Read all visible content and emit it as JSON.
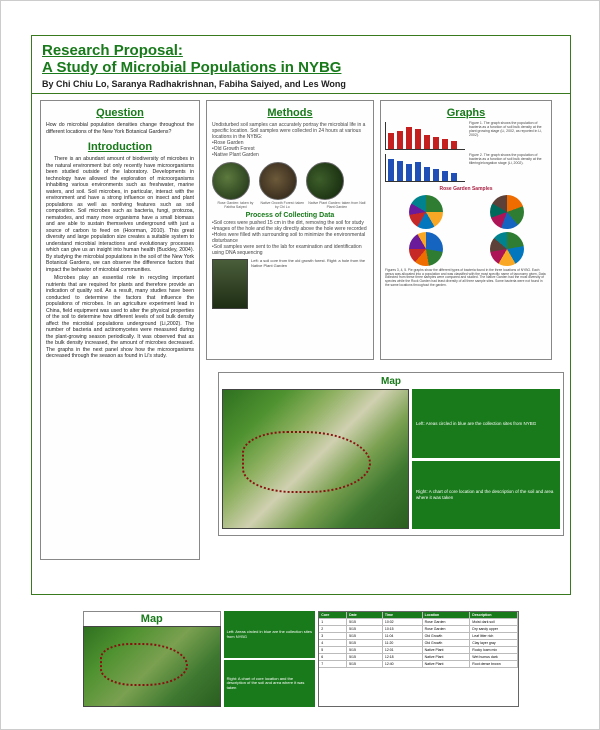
{
  "title": {
    "line1": "Research Proposal:",
    "line2": "A Study of Microbial Populations in NYBG",
    "authors": "By Chi Chiu Lo, Saranya Radhakrishnan, Fabiha Saiyed, and Les Wong"
  },
  "question": {
    "heading": "Question",
    "text": "How do microbial population densities change throughout the different locations of the New York Botanical Gardens?"
  },
  "introduction": {
    "heading": "Introduction",
    "p1": "There is an abundant amount of biodiversity of microbes in the natural environment but only recently have microorganisms been studied outside of the laboratory. Developments in technology have allowed the exploration of microorganisms inhabiting various environments such as freshwater, marine waters, and soil. Soil microbes, in particular, interact with the environment and have a strong influence on insect and plant populations as well as nonliving features such as soil composition. Soil microbes such as bacteria, fungi, protozoa, nematodes, and many more organisms have a small biomass and are able to sustain themselves underground with just a source of carbon to feed on (Hoorman, 2010). This great diversity and large population size creates a suitable system to understand microbial interactions and evolutionary processes which can give us an insight into human health (Buckley, 2004). By studying the microbial populations in the soil of the New York Botanical Gardens, we can observe the difference factors that impact the behavior of microbial communities.",
    "p2": "Microbes play an essential role in recycling important nutrients that are required for plants and therefore provide an indication of quality soil. As a result, many studies have been conducted to determine the factors that influence the populations of microbes. In an agriculture experiment lead in China, field equipment was used to alter the physical properties of the soil to determine how different levels of soil bulk density affect the microbial populations underground (Li,2002). The number of bacteria and actinomycetes were measured during the plant-growing season periodically. It was observed that as the bulk density increased, the amount of microbes decreased. The graphs in the next panel show how the microorganisms decreased through the season as found in Li's study."
  },
  "methods": {
    "heading": "Methods",
    "intro": "Undisturbed soil samples can accurately portray the microbial life in a specific location. Soil samples were collected in 24 hours at various locations in the NYBG:",
    "sites": [
      "•Rose Garden",
      "•Old Growth Forest",
      "•Native Plant Garden"
    ],
    "photo_caps": [
      "Rose Garden: taken by Fabiha Saiyed",
      "Native Growth Forest: taken by Chi Lo",
      "Native Plant Garden: taken from Natl Plant Garden"
    ],
    "proc_heading": "Process of Collecting Data",
    "proc_items": [
      "•Soil cores were pushed 15 cm in the dirt, removing the soil for study",
      "•Images of the hole and the sky directly above the hole were recorded",
      "•Holes were filled with surrounding soil to minimize the environmental disturbance",
      "•Soil samples were sent to the lab for examination and identification using DNA sequencing"
    ],
    "proc_cap": "Left: a soil core from the old growth forest. Right: a hole from the Native Plant Garden"
  },
  "graphs": {
    "heading": "Graphs",
    "bars1": {
      "values": [
        16,
        18,
        22,
        20,
        14,
        12,
        10,
        8
      ],
      "color": "#c42020",
      "cap": "Figure 1. The graph shows the population of bacteria as a function of soil bulk density at the plant growing stage (Li, 2002, as reported in Li, 2002)."
    },
    "bars2": {
      "values": [
        22,
        20,
        17,
        19,
        14,
        12,
        10,
        8
      ],
      "color": "#2050b5",
      "cap": "Figure 2. The graph shows the population of bacteria as a function of soil bulk density at the tillering/elongation stage (Li, 2002)."
    },
    "pies_heading": "Rose Garden Samples",
    "pie_colors1": [
      "#2e7d32 0 90deg",
      "#f9a825 90deg 150deg",
      "#0277bd 150deg 210deg",
      "#c62828 210deg 260deg",
      "#6a1b9a 260deg 300deg",
      "#00838f 300deg 360deg"
    ],
    "pie_colors2": [
      "#ef6c00 0 70deg",
      "#2e7d32 70deg 140deg",
      "#1565c0 140deg 200deg",
      "#ad1457 200deg 250deg",
      "#00695c 250deg 300deg",
      "#5d4037 300deg 360deg"
    ],
    "pie_colors3": [
      "#1565c0 0 100deg",
      "#2e7d32 100deg 170deg",
      "#ef6c00 170deg 220deg",
      "#c62828 220deg 270deg",
      "#6a1b9a 270deg 330deg",
      "#f9a825 330deg 360deg"
    ],
    "pie_colors4": [
      "#2e7d32 0 80deg",
      "#0277bd 80deg 150deg",
      "#f9a825 150deg 210deg",
      "#ad1457 210deg 260deg",
      "#5d4037 260deg 310deg",
      "#00838f 310deg 360deg"
    ],
    "pie_cap": "Figures 3, 4, 5. Pie graphs show the different types of bacteria found in the three locations of NYBG. Each genus was allocated into a population and was classified with the most specific name of taxonomy given. Data collected from these three samples were compared and studied. The Native Garden had the most diversity of species while the Rock Garden had least diversity of all three sample sites. Some bacteria were not found in the same locations throughout the garden."
  },
  "map": {
    "heading": "Map",
    "note_left": "Left: Areas circled in blue are the collection sites from NYBG",
    "note_right": "Right: A chart of core location and the description of the soil and area where it was taken"
  },
  "bmap": {
    "heading": "Map",
    "note_left": "Left: Areas circled in blue are the collection sites from NYBG",
    "note_right": "Right: A chart of core location and the description of the soil and area where it was taken"
  },
  "table": {
    "headers": [
      "Core",
      "Date",
      "Time",
      "Location",
      "Description"
    ],
    "rows": [
      [
        "1",
        "5/15",
        "10:02",
        "Rose Garden",
        "Moist dark soil"
      ],
      [
        "2",
        "5/15",
        "10:15",
        "Rose Garden",
        "Dry sandy upper"
      ],
      [
        "3",
        "5/15",
        "11:04",
        "Old Growth",
        "Leaf litter rich"
      ],
      [
        "4",
        "5/15",
        "11:20",
        "Old Growth",
        "Clay layer gray"
      ],
      [
        "5",
        "5/15",
        "12:01",
        "Native Plant",
        "Rocky loam mix"
      ],
      [
        "6",
        "5/15",
        "12:18",
        "Native Plant",
        "Wet humus dark"
      ],
      [
        "7",
        "5/15",
        "12:40",
        "Native Plant",
        "Root dense brown"
      ]
    ]
  },
  "colors": {
    "green": "#187a1a",
    "border": "#3a7a1e"
  }
}
